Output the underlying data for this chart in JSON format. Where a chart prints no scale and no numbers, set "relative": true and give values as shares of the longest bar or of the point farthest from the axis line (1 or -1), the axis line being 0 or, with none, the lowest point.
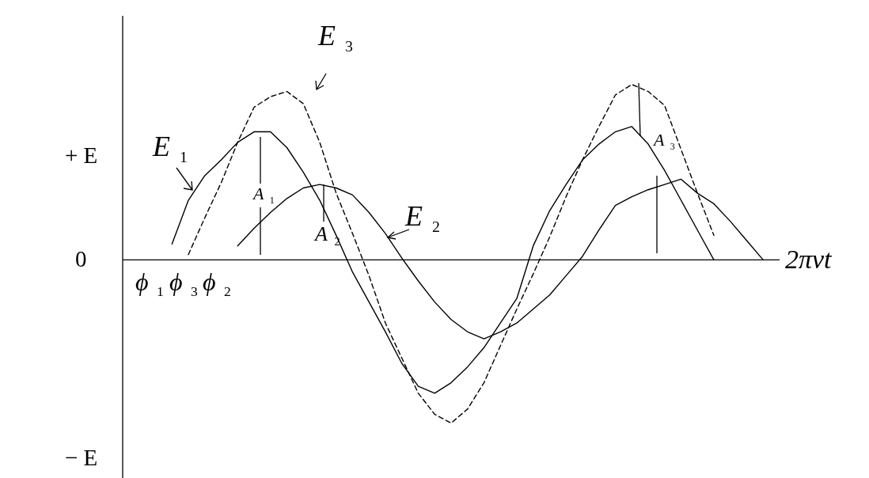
{
  "chart_data": {
    "type": "line",
    "relative": true,
    "xlabel": "2πνt",
    "categories": [
      null,
      null,
      null,
      null,
      null,
      null,
      null,
      null,
      null,
      null,
      null,
      null,
      null,
      null,
      null,
      null,
      null,
      null,
      null,
      null,
      null,
      null,
      null,
      null,
      null,
      null,
      null,
      null,
      null,
      null,
      null,
      null,
      null,
      null,
      null,
      null,
      null,
      null,
      null,
      null,
      null
    ],
    "series": [
      {
        "name": "E$_{1}$",
        "color": "#000000",
        "line_style": "solid",
        "values": [
          null,
          null,
          null,
          0.09,
          0.34,
          0.48,
          0.57,
          0.67,
          0.73,
          0.73,
          0.64,
          0.5,
          0.34,
          0.14,
          -0.07,
          -0.24,
          -0.41,
          -0.59,
          -0.72,
          -0.76,
          -0.7,
          -0.61,
          -0.5,
          -0.36,
          -0.22,
          0.08,
          0.28,
          0.43,
          0.57,
          0.66,
          0.73,
          0.76,
          0.66,
          0.51,
          0.34,
          0.17,
          0,
          null,
          null,
          null,
          null
        ]
      },
      {
        "name": "E$_{2}$",
        "color": "#000000",
        "line_style": "solid",
        "values": [
          null,
          null,
          null,
          null,
          null,
          null,
          null,
          0.08,
          0.18,
          0.27,
          0.35,
          0.41,
          0.43,
          0.41,
          0.37,
          0.27,
          0.15,
          0.01,
          -0.12,
          -0.24,
          -0.34,
          -0.41,
          -0.45,
          -0.41,
          -0.36,
          -0.28,
          -0.2,
          -0.09,
          0.02,
          0.17,
          0.31,
          0.36,
          0.4,
          0.43,
          0.46,
          0.38,
          0.32,
          0.22,
          0.11,
          0,
          null
        ]
      },
      {
        "name": "E$_{3}$",
        "color": "#000000",
        "line_style": "dashed",
        "values": [
          null,
          null,
          null,
          null,
          0.03,
          0.24,
          0.44,
          0.67,
          0.87,
          0.93,
          0.96,
          0.89,
          0.67,
          0.38,
          0.15,
          -0.09,
          -0.36,
          -0.56,
          -0.76,
          -0.88,
          -0.93,
          -0.85,
          -0.7,
          -0.49,
          -0.28,
          -0.08,
          0.13,
          0.36,
          0.57,
          0.76,
          0.94,
          1,
          0.96,
          0.88,
          0.63,
          0.38,
          0.14,
          null,
          null,
          null,
          null
        ]
      }
    ],
    "tick_labels": false,
    "marker": "none",
    "annotations": [
      "+ E",
      "0",
      "− E",
      "A$_{1}$",
      "A$_{2}$",
      "A$_{3}$",
      "ϕ$_{1}$",
      "ϕ$_{3}$",
      "ϕ$_{2}$"
    ]
  }
}
